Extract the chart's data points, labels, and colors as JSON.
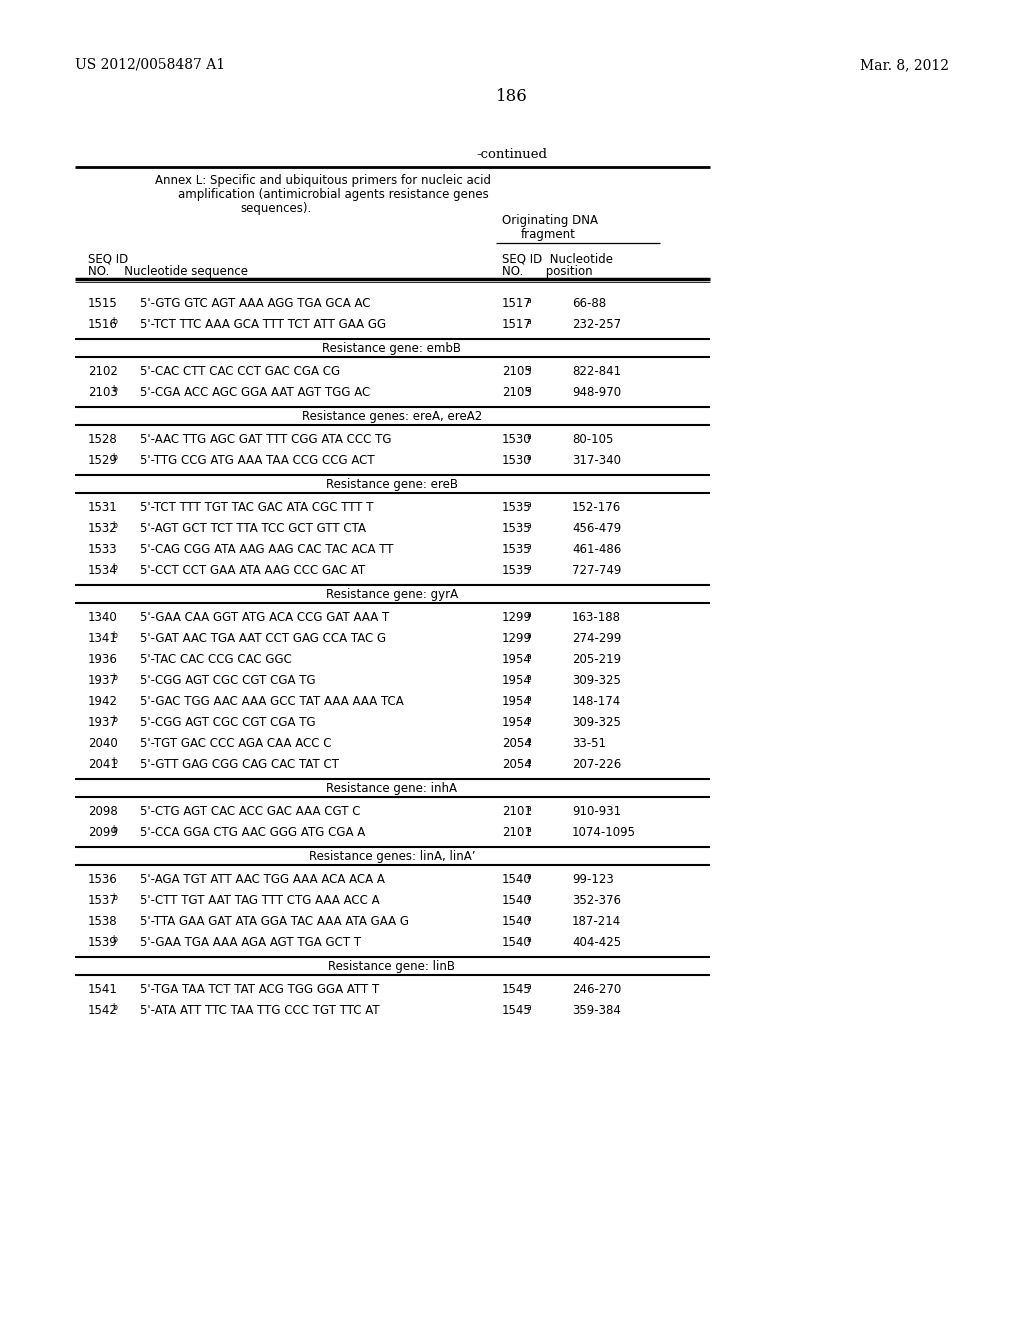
{
  "patent_left": "US 2012/0058487 A1",
  "patent_right": "Mar. 8, 2012",
  "page_number": "186",
  "continued": "-continued",
  "rows": [
    {
      "seq": "1515",
      "sup": "",
      "seq_text": "5'-GTG GTC AGT AAA AGG TGA GCA AC",
      "ref": "1517",
      "ref_sup": "a",
      "pos": "66-88"
    },
    {
      "seq": "1516",
      "sup": "b",
      "seq_text": "5'-TCT TTC AAA GCA TTT TCT ATT GAA GG",
      "ref": "1517",
      "ref_sup": "a",
      "pos": "232-257"
    },
    {
      "section": "Resistance gene: embB"
    },
    {
      "seq": "2102",
      "sup": "",
      "seq_text": "5'-CAC CTT CAC CCT GAC CGA CG",
      "ref": "2105",
      "ref_sup": "a",
      "pos": "822-841"
    },
    {
      "seq": "2103",
      "sup": "b",
      "seq_text": "5'-CGA ACC AGC GGA AAT AGT TGG AC",
      "ref": "2105",
      "ref_sup": "a",
      "pos": "948-970"
    },
    {
      "section": "Resistance genes: ereA, ereA2"
    },
    {
      "seq": "1528",
      "sup": "",
      "seq_text": "5'-AAC TTG AGC GAT TTT CGG ATA CCC TG",
      "ref": "1530",
      "ref_sup": "a",
      "pos": "80-105"
    },
    {
      "seq": "1529",
      "sup": "b",
      "seq_text": "5'-TTG CCG ATG AAA TAA CCG CCG ACT",
      "ref": "1530",
      "ref_sup": "a",
      "pos": "317-340"
    },
    {
      "section": "Resistance gene: ereB"
    },
    {
      "seq": "1531",
      "sup": "",
      "seq_text": "5'-TCT TTT TGT TAC GAC ATA CGC TTT T",
      "ref": "1535",
      "ref_sup": "a",
      "pos": "152-176"
    },
    {
      "seq": "1532",
      "sup": "b",
      "seq_text": "5'-AGT GCT TCT TTA TCC GCT GTT CTA",
      "ref": "1535",
      "ref_sup": "a",
      "pos": "456-479"
    },
    {
      "seq": "1533",
      "sup": "",
      "seq_text": "5'-CAG CGG ATA AAG AAG CAC TAC ACA TT",
      "ref": "1535",
      "ref_sup": "a",
      "pos": "461-486"
    },
    {
      "seq": "1534",
      "sup": "b",
      "seq_text": "5'-CCT CCT GAA ATA AAG CCC GAC AT",
      "ref": "1535",
      "ref_sup": "a",
      "pos": "727-749"
    },
    {
      "section": "Resistance gene: gyrA"
    },
    {
      "seq": "1340",
      "sup": "",
      "seq_text": "5'-GAA CAA GGT ATG ACA CCG GAT AAA T",
      "ref": "1299",
      "ref_sup": "a",
      "pos": "163-188"
    },
    {
      "seq": "1341",
      "sup": "b",
      "seq_text": "5'-GAT AAC TGA AAT CCT GAG CCA TAC G",
      "ref": "1299",
      "ref_sup": "a",
      "pos": "274-299"
    },
    {
      "seq": "1936",
      "sup": "",
      "seq_text": "5'-TAC CAC CCG CAC GGC",
      "ref": "1954",
      "ref_sup": "a",
      "pos": "205-219"
    },
    {
      "seq": "1937",
      "sup": "b",
      "seq_text": "5'-CGG AGT CGC CGT CGA TG",
      "ref": "1954",
      "ref_sup": "a",
      "pos": "309-325"
    },
    {
      "seq": "1942",
      "sup": "",
      "seq_text": "5'-GAC TGG AAC AAA GCC TAT AAA AAA TCA",
      "ref": "1954",
      "ref_sup": "a",
      "pos": "148-174"
    },
    {
      "seq": "1937b",
      "sup": "b",
      "seq_text": "5'-CGG AGT CGC CGT CGA TG",
      "ref": "1954",
      "ref_sup": "a",
      "pos": "309-325"
    },
    {
      "seq": "2040",
      "sup": "",
      "seq_text": "5'-TGT GAC CCC AGA CAA ACC C",
      "ref": "2054",
      "ref_sup": "a",
      "pos": "33-51"
    },
    {
      "seq": "2041",
      "sup": "b",
      "seq_text": "5'-GTT GAG CGG CAG CAC TAT CT",
      "ref": "2054",
      "ref_sup": "a",
      "pos": "207-226"
    },
    {
      "section": "Resistance gene: inhA"
    },
    {
      "seq": "2098",
      "sup": "",
      "seq_text": "5'-CTG AGT CAC ACC GAC AAA CGT C",
      "ref": "2101",
      "ref_sup": "a",
      "pos": "910-931"
    },
    {
      "seq": "2099",
      "sup": "b",
      "seq_text": "5'-CCA GGA CTG AAC GGG ATG CGA A",
      "ref": "2101",
      "ref_sup": "a",
      "pos": "1074-1095"
    },
    {
      "section": "Resistance genes: linA, linA’"
    },
    {
      "seq": "1536",
      "sup": "",
      "seq_text": "5'-AGA TGT ATT AAC TGG AAA ACA ACA A",
      "ref": "1540",
      "ref_sup": "a",
      "pos": "99-123"
    },
    {
      "seq": "1537",
      "sup": "b",
      "seq_text": "5'-CTT TGT AAT TAG TTT CTG AAA ACC A",
      "ref": "1540",
      "ref_sup": "a",
      "pos": "352-376"
    },
    {
      "seq": "1538",
      "sup": "",
      "seq_text": "5'-TTA GAA GAT ATA GGA TAC AAA ATA GAA G",
      "ref": "1540",
      "ref_sup": "a",
      "pos": "187-214"
    },
    {
      "seq": "1539",
      "sup": "b",
      "seq_text": "5'-GAA TGA AAA AGA AGT TGA GCT T",
      "ref": "1540",
      "ref_sup": "a",
      "pos": "404-425"
    },
    {
      "section": "Resistance gene: linB"
    },
    {
      "seq": "1541",
      "sup": "",
      "seq_text": "5'-TGA TAA TCT TAT ACG TGG GGA ATT T",
      "ref": "1545",
      "ref_sup": "a",
      "pos": "246-270"
    },
    {
      "seq": "1542",
      "sup": "b",
      "seq_text": "5'-ATA ATT TTC TAA TTG CCC TGT TTC AT",
      "ref": "1545",
      "ref_sup": "a",
      "pos": "359-384"
    }
  ],
  "bg_color": "#ffffff",
  "text_color": "#000000"
}
